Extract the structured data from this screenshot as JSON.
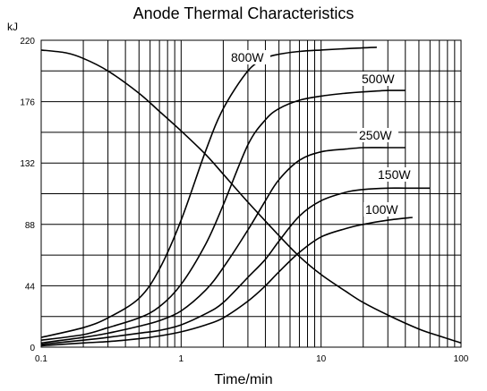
{
  "chart_data": {
    "type": "line",
    "title": "Anode Thermal Characteristics",
    "ylabel": "kJ",
    "xlabel": "Time/min",
    "xscale": "log",
    "xlim": [
      0.1,
      100
    ],
    "ylim": [
      0,
      220
    ],
    "yticks": [
      0,
      44,
      88,
      132,
      176,
      220
    ],
    "xticks": [
      0.1,
      1,
      10,
      100
    ],
    "xtick_labels": [
      "0.1",
      "1",
      "10",
      "100"
    ],
    "grid": true,
    "series": [
      {
        "name": "800W",
        "x": [
          0.1,
          0.2,
          0.3,
          0.5,
          0.7,
          1,
          1.5,
          2,
          3,
          4,
          5,
          7,
          10,
          15,
          25
        ],
        "y": [
          7,
          14,
          21,
          35,
          56,
          91,
          141,
          171,
          198,
          207,
          210,
          212,
          213,
          214,
          215
        ]
      },
      {
        "name": "500W",
        "x": [
          0.1,
          0.2,
          0.3,
          0.5,
          0.7,
          1,
          1.5,
          2,
          3,
          4,
          5,
          7,
          10,
          15,
          20,
          30,
          40
        ],
        "y": [
          5,
          9,
          14,
          21,
          29,
          45,
          74,
          102,
          145,
          163,
          171,
          177,
          180,
          182,
          183,
          184,
          184
        ]
      },
      {
        "name": "250W",
        "x": [
          0.1,
          0.2,
          0.3,
          0.5,
          0.7,
          1,
          1.5,
          2,
          3,
          4,
          5,
          7,
          10,
          15,
          20,
          30,
          40
        ],
        "y": [
          3,
          7,
          10,
          15,
          19,
          26,
          41,
          57,
          84,
          105,
          120,
          134,
          140,
          142,
          143,
          143,
          143
        ]
      },
      {
        "name": "150W",
        "x": [
          0.1,
          0.2,
          0.3,
          0.5,
          0.7,
          1,
          1.5,
          2,
          3,
          4,
          5,
          7,
          10,
          15,
          20,
          30,
          40,
          60
        ],
        "y": [
          2,
          5,
          7,
          10,
          12,
          16,
          24,
          32,
          50,
          63,
          76,
          94,
          105,
          111,
          113,
          114,
          114,
          114
        ]
      },
      {
        "name": "100W",
        "x": [
          0.1,
          0.2,
          0.3,
          0.5,
          0.7,
          1,
          1.5,
          2,
          3,
          4,
          5,
          7,
          10,
          15,
          20,
          30,
          45
        ],
        "y": [
          1,
          3,
          4,
          6,
          8,
          11,
          16,
          21,
          33,
          44,
          54,
          68,
          79,
          85,
          88,
          91,
          93
        ]
      },
      {
        "name": "",
        "x": [
          0.1,
          0.15,
          0.2,
          0.3,
          0.5,
          0.7,
          1,
          1.5,
          2,
          3,
          5,
          7,
          10,
          15,
          20,
          30,
          50,
          70,
          100
        ],
        "y": [
          213,
          211,
          207,
          198,
          182,
          169,
          155,
          138,
          124,
          104,
          80,
          65,
          52,
          40,
          32,
          23,
          13,
          8,
          3
        ]
      }
    ]
  }
}
